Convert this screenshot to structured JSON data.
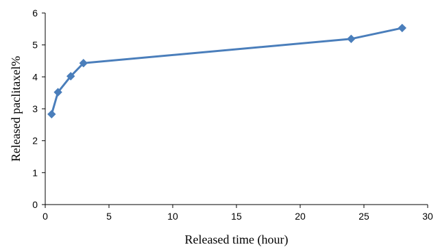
{
  "chart_data": {
    "type": "line",
    "title": "",
    "xlabel": "Released time (hour)",
    "ylabel": "Released paclitaxel%",
    "xlim": [
      0,
      30
    ],
    "ylim": [
      0,
      6
    ],
    "xticks": [
      "0",
      "5",
      "10",
      "15",
      "20",
      "25",
      "30"
    ],
    "yticks": [
      "0",
      "1",
      "2",
      "3",
      "4",
      "5",
      "6"
    ],
    "grid": false,
    "legend": "none",
    "series": [
      {
        "color": "#4a7ebb",
        "marker": "diamond",
        "x": [
          0.5,
          1,
          2,
          3,
          24,
          28
        ],
        "y": [
          2.83,
          3.52,
          4.02,
          4.43,
          5.19,
          5.53
        ]
      }
    ]
  }
}
